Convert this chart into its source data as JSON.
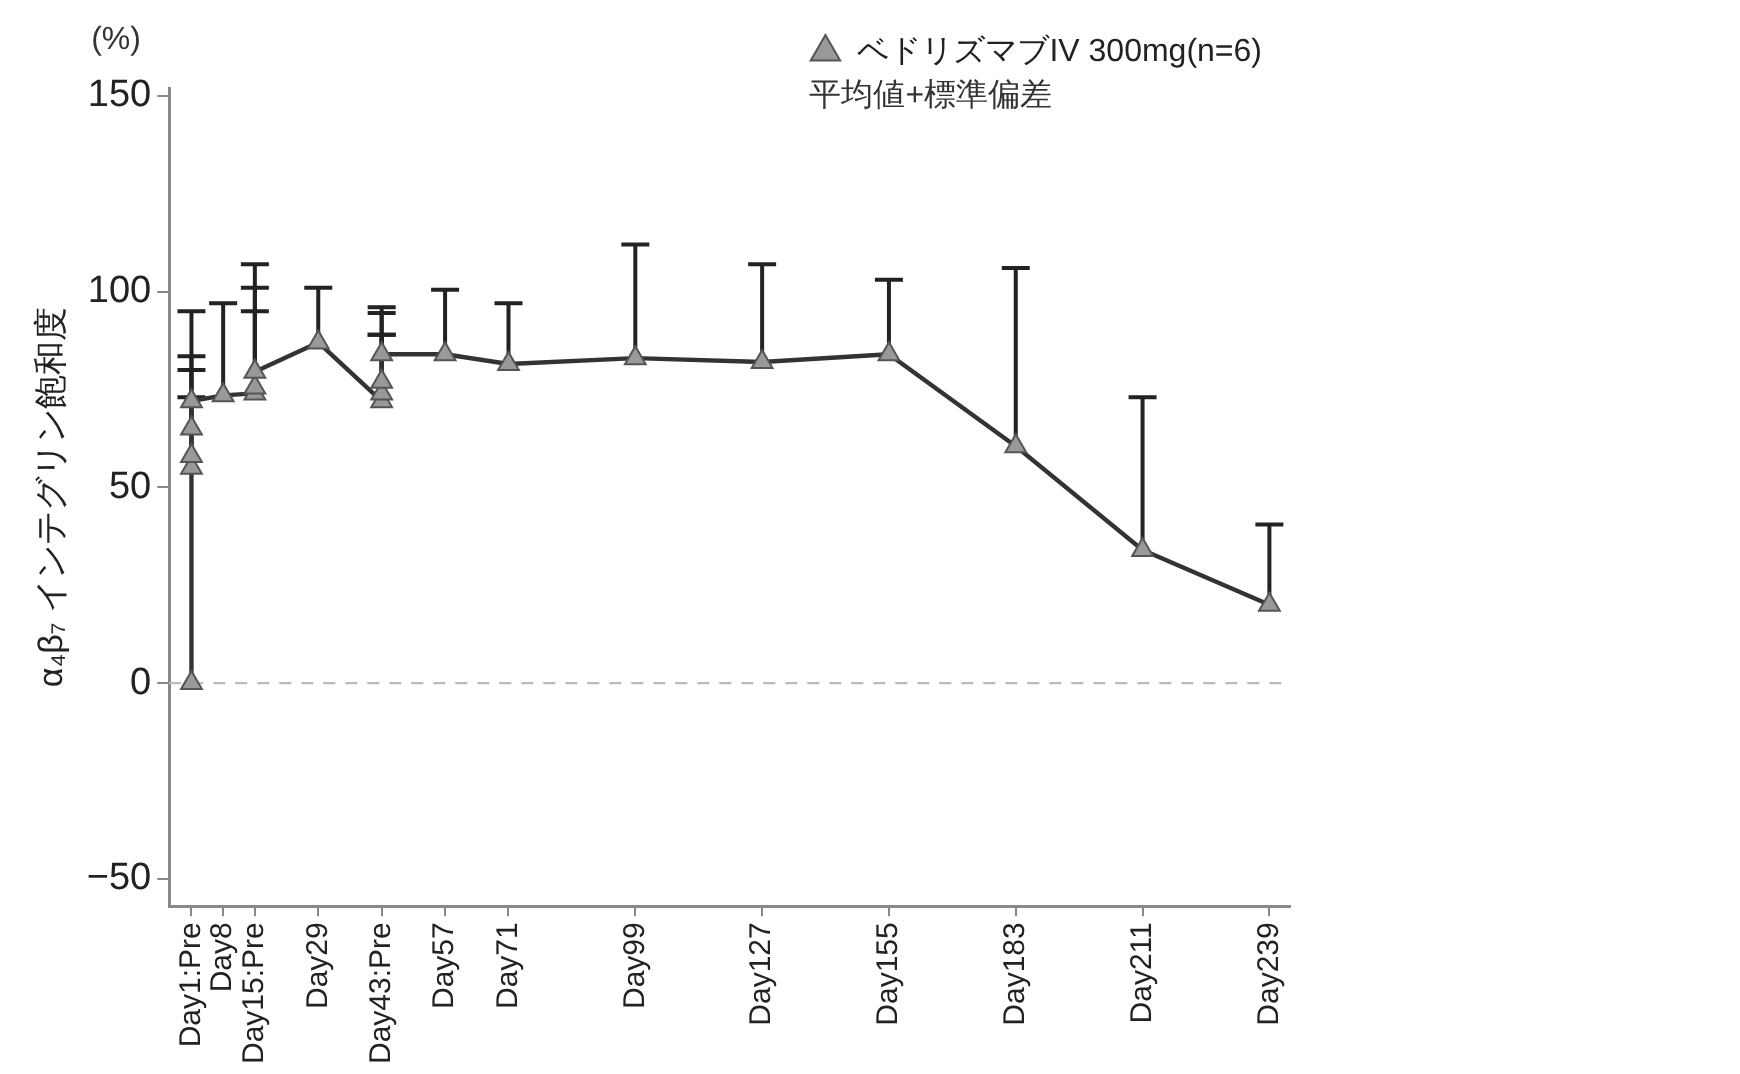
{
  "chart_data": {
    "type": "line",
    "ylabel": "α₄β₇ インテグリン飽和度",
    "annotations": [
      "(%)",
      "平均値+標準偏差"
    ],
    "categories": [
      "Day1:Pre",
      "Day8",
      "Day15:Pre",
      null,
      "Day29",
      null,
      "Day43:Pre",
      null,
      "Day57",
      null,
      "Day71",
      null,
      null,
      null,
      "Day99",
      null,
      null,
      null,
      "Day127",
      null,
      null,
      null,
      "Day155",
      null,
      null,
      null,
      "Day183",
      null,
      null,
      null,
      "Day211",
      null,
      null,
      null,
      "Day239"
    ],
    "series": [
      {
        "name": "ベドリズマブIV 300mg(n=6)",
        "color": "#333333",
        "x": [
          "Day1:Pre",
          "Day1:Pre",
          "Day1:Pre",
          "Day1:Pre",
          "Day1:Pre",
          "Day8",
          "Day15:Pre",
          "Day15:Pre",
          "Day15:Pre",
          "Day29",
          "Day43:Pre",
          "Day43:Pre",
          "Day43:Pre",
          "Day43:Pre",
          "Day57",
          "Day71",
          "Day99",
          "Day127",
          "Day155",
          "Day183",
          "Day211",
          "Day239"
        ],
        "values": [
          0,
          55,
          58,
          65,
          72,
          73.5,
          74,
          75.5,
          79.5,
          87,
          72,
          74,
          77,
          84,
          84,
          81.5,
          83,
          82,
          84,
          60.5,
          34,
          20
        ],
        "errors": [
          null,
          [
            55,
            80
          ],
          [
            58,
            83.5
          ],
          [
            65,
            95
          ],
          [
            72,
            73
          ],
          [
            73.5,
            97
          ],
          [
            74,
            95
          ],
          [
            75.5,
            101
          ],
          [
            79.5,
            107
          ],
          [
            87,
            101
          ],
          [
            72,
            89
          ],
          [
            74,
            89
          ],
          [
            77,
            94.5
          ],
          [
            84,
            96
          ],
          [
            84,
            100.5
          ],
          [
            81.5,
            97
          ],
          [
            83,
            112
          ],
          [
            82,
            107
          ],
          [
            84,
            103
          ],
          [
            60.5,
            106
          ],
          [
            34,
            73
          ],
          [
            20,
            40.5
          ]
        ]
      }
    ],
    "marker": "triangle",
    "line_style": "solid",
    "grid": false,
    "legend": "top right",
    "ylim": [
      -57,
      152
    ],
    "yticks": [
      -50,
      0,
      50,
      100,
      150
    ],
    "ref_lines": [
      {
        "axis": "y",
        "value": 0,
        "color": "#bbbbbb",
        "line_style": "dashed"
      }
    ]
  }
}
